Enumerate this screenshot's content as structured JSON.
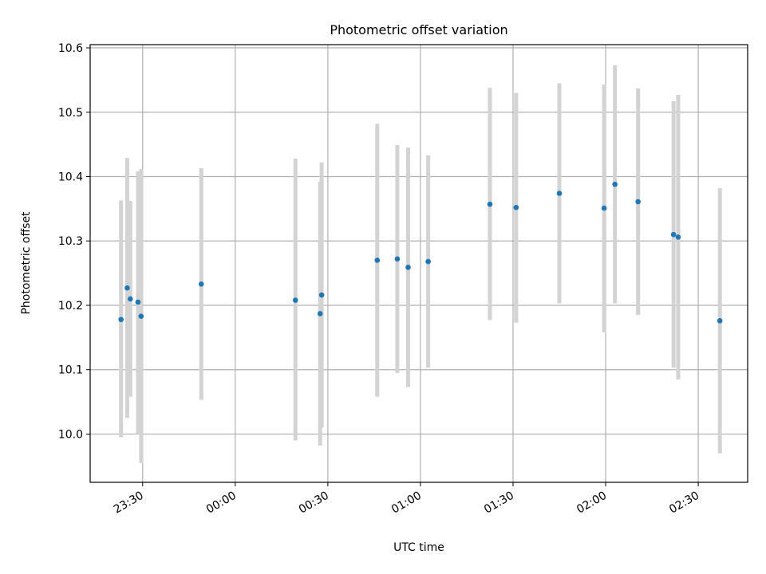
{
  "chart_data": {
    "type": "scatter",
    "title": "Photometric offset variation",
    "xlabel": "UTC time",
    "ylabel": "Photometric offset",
    "x_tick_labels": [
      "23:30",
      "00:00",
      "00:30",
      "01:00",
      "01:30",
      "02:00",
      "02:30"
    ],
    "x_ticks": [
      "2000-01-01T23:30",
      "2000-01-02T00:00",
      "2000-01-02T00:30",
      "2000-01-02T01:00",
      "2000-01-02T01:30",
      "2000-01-02T02:00",
      "2000-01-02T02:30"
    ],
    "y_tick_labels": [
      "10.0",
      "10.1",
      "10.2",
      "10.3",
      "10.4",
      "10.5",
      "10.6"
    ],
    "y_ticks": [
      10.0,
      10.1,
      10.2,
      10.3,
      10.4,
      10.5,
      10.6
    ],
    "xlim": [
      "2000-01-01T23:13:00",
      "2000-01-02T02:46:00"
    ],
    "ylim": [
      9.925,
      10.605
    ],
    "grid": true,
    "colors": {
      "point": "#1f77b4",
      "errorbar": "#d3d3d3",
      "grid": "#b0b0b0"
    },
    "series": [
      {
        "points": [
          {
            "x": "2000-01-01T23:23:00",
            "y": 10.178,
            "low": 9.995,
            "high": 10.363
          },
          {
            "x": "2000-01-01T23:25:00",
            "y": 10.227,
            "low": 10.025,
            "high": 10.429
          },
          {
            "x": "2000-01-01T23:26:00",
            "y": 10.21,
            "low": 10.058,
            "high": 10.362
          },
          {
            "x": "2000-01-01T23:28:30",
            "y": 10.205,
            "low": 10.0,
            "high": 10.408
          },
          {
            "x": "2000-01-01T23:29:30",
            "y": 10.183,
            "low": 9.955,
            "high": 10.412
          },
          {
            "x": "2000-01-01T23:49:00",
            "y": 10.233,
            "low": 10.053,
            "high": 10.413
          },
          {
            "x": "2000-01-02T00:19:30",
            "y": 10.208,
            "low": 9.99,
            "high": 10.428
          },
          {
            "x": "2000-01-02T00:27:30",
            "y": 10.187,
            "low": 9.982,
            "high": 10.392
          },
          {
            "x": "2000-01-02T00:28:00",
            "y": 10.216,
            "low": 10.01,
            "high": 10.422
          },
          {
            "x": "2000-01-02T00:46:00",
            "y": 10.27,
            "low": 10.058,
            "high": 10.482
          },
          {
            "x": "2000-01-02T00:52:30",
            "y": 10.272,
            "low": 10.095,
            "high": 10.449
          },
          {
            "x": "2000-01-02T00:56:00",
            "y": 10.259,
            "low": 10.073,
            "high": 10.445
          },
          {
            "x": "2000-01-02T01:02:30",
            "y": 10.268,
            "low": 10.103,
            "high": 10.433
          },
          {
            "x": "2000-01-02T01:22:30",
            "y": 10.357,
            "low": 10.177,
            "high": 10.538
          },
          {
            "x": "2000-01-02T01:31:00",
            "y": 10.352,
            "low": 10.173,
            "high": 10.53
          },
          {
            "x": "2000-01-02T01:45:00",
            "y": 10.374,
            "low": 10.203,
            "high": 10.545
          },
          {
            "x": "2000-01-02T01:59:30",
            "y": 10.351,
            "low": 10.158,
            "high": 10.543
          },
          {
            "x": "2000-01-02T02:03:00",
            "y": 10.388,
            "low": 10.203,
            "high": 10.573
          },
          {
            "x": "2000-01-02T02:10:30",
            "y": 10.361,
            "low": 10.185,
            "high": 10.537
          },
          {
            "x": "2000-01-02T02:22:00",
            "y": 10.31,
            "low": 10.103,
            "high": 10.517
          },
          {
            "x": "2000-01-02T02:23:30",
            "y": 10.306,
            "low": 10.085,
            "high": 10.527
          },
          {
            "x": "2000-01-02T02:37:00",
            "y": 10.176,
            "low": 9.97,
            "high": 10.382
          }
        ]
      }
    ]
  }
}
